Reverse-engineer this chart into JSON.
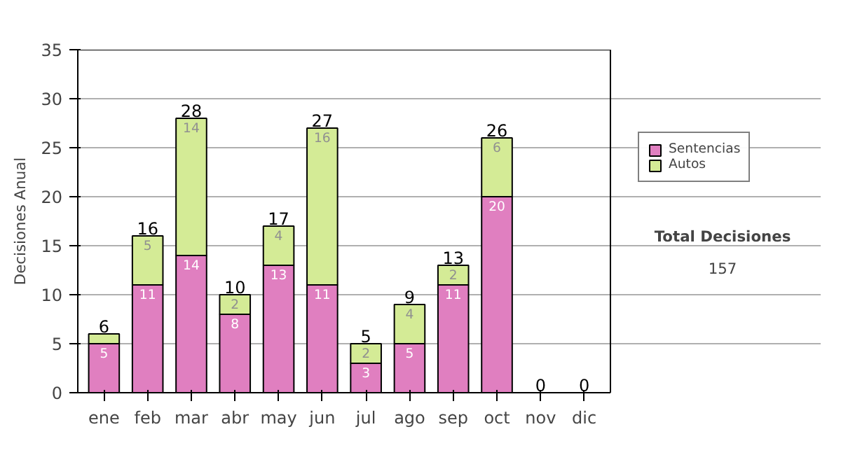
{
  "chart_data": {
    "type": "bar",
    "stacked": true,
    "ylabel": "Decisiones Anual",
    "categories": [
      "ene",
      "feb",
      "mar",
      "abr",
      "may",
      "jun",
      "jul",
      "ago",
      "sep",
      "oct",
      "nov",
      "dic"
    ],
    "series": [
      {
        "name": "Sentencias",
        "color": "#e07fc0",
        "values": [
          5,
          11,
          14,
          8,
          13,
          11,
          3,
          5,
          11,
          20,
          0,
          0
        ],
        "value_labels": [
          "5",
          "11",
          "14",
          "8",
          "13",
          "11",
          "3",
          "5",
          "11",
          "20",
          null,
          null
        ]
      },
      {
        "name": "Autos",
        "color": "#d4eb96",
        "values": [
          1,
          5,
          14,
          2,
          4,
          16,
          2,
          4,
          2,
          6,
          0,
          0
        ],
        "value_labels": [
          null,
          "5",
          "14",
          "2",
          "4",
          "16",
          "2",
          "4",
          "2",
          "6",
          null,
          null
        ]
      }
    ],
    "totals": [
      "6",
      "16",
      "28",
      "10",
      "17",
      "27",
      "5",
      "9",
      "13",
      "26",
      "0",
      "0"
    ],
    "ylim": [
      0,
      35
    ],
    "yticks": [
      0,
      5,
      10,
      15,
      20,
      25,
      30,
      35
    ],
    "grid": "y",
    "legend": "right",
    "annotations": [
      "Total Decisiones",
      "157"
    ]
  }
}
